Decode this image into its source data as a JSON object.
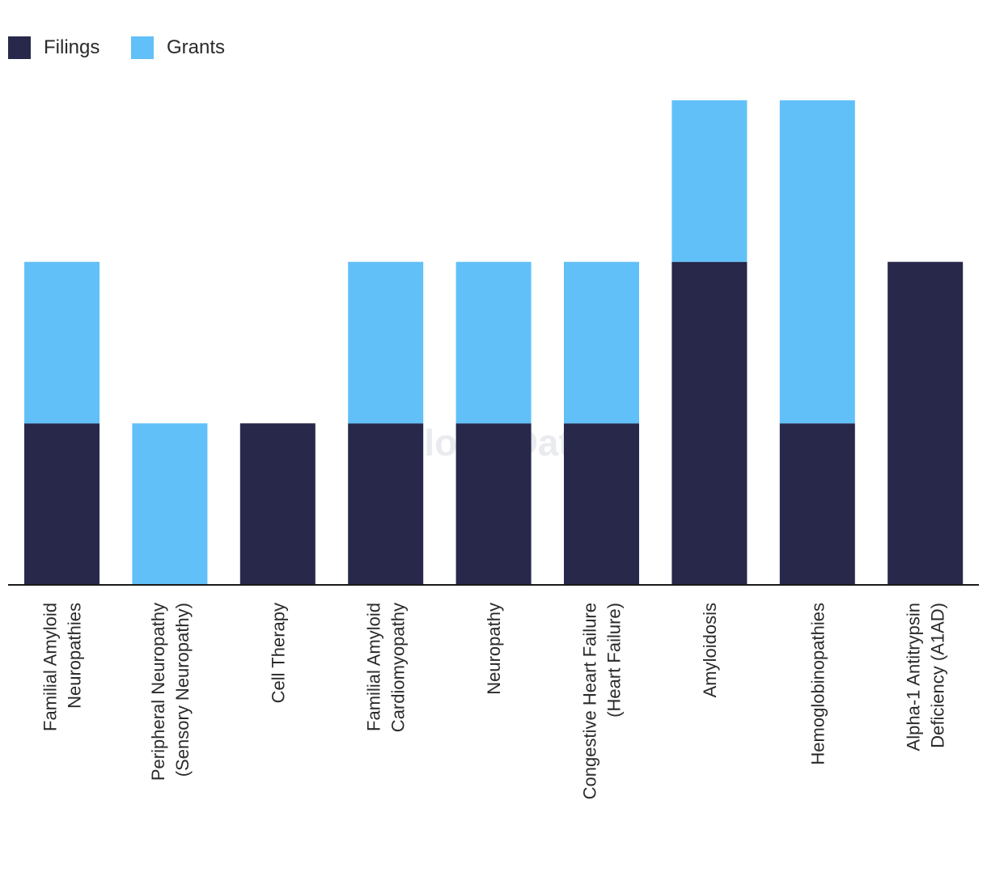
{
  "chart_data": {
    "type": "bar",
    "stacked": true,
    "categories": [
      [
        "Familial Amyloid",
        "Neuropathies"
      ],
      [
        "Peripheral Neuropathy",
        "(Sensory Neuropathy)"
      ],
      [
        "Cell Therapy"
      ],
      [
        "Familial Amyloid",
        "Cardiomyopathy"
      ],
      [
        "Neuropathy"
      ],
      [
        "Congestive Heart Failure",
        "(Heart Failure)"
      ],
      [
        "Amyloidosis"
      ],
      [
        "Hemoglobinopathies"
      ],
      [
        "Alpha-1 Antitrypsin",
        "Deficiency (A1AD)"
      ]
    ],
    "series": [
      {
        "name": "Filings",
        "color": "#27284a",
        "values": [
          1,
          0,
          1,
          1,
          1,
          1,
          2,
          1,
          2
        ]
      },
      {
        "name": "Grants",
        "color": "#62c0f8",
        "values": [
          1,
          1,
          0,
          1,
          1,
          1,
          1,
          2,
          0
        ]
      }
    ],
    "ylim": [
      0,
      3
    ],
    "title": "",
    "xlabel": "",
    "ylabel": "",
    "grid": false,
    "legend_position": "top-left",
    "watermark": "GlobalData"
  }
}
